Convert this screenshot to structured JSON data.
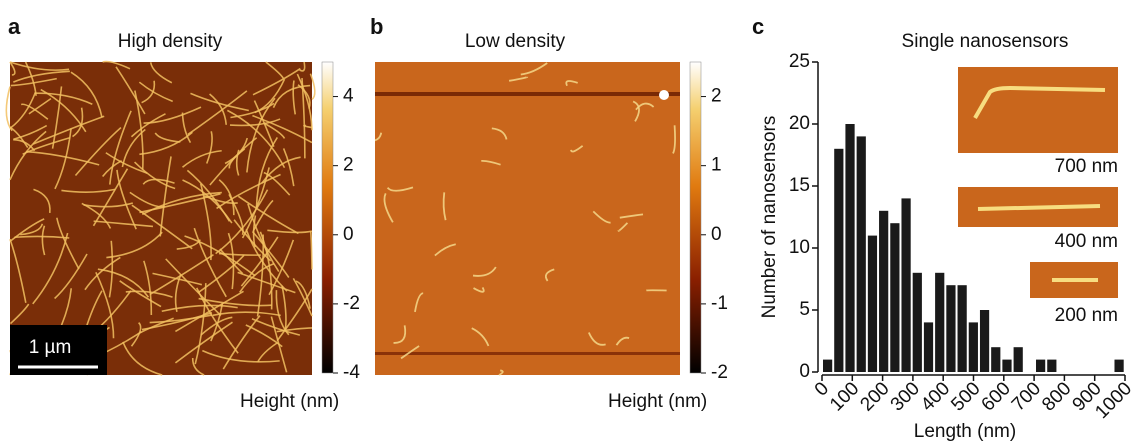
{
  "panel_a": {
    "label": "a",
    "title": "High density",
    "colorbar_lim": [
      -4,
      5
    ],
    "colorbar_ticks": [
      4,
      2,
      0,
      -2,
      -4
    ],
    "colorbar_label": "Height (nm)",
    "scale_bar": "1 µm"
  },
  "panel_b": {
    "label": "b",
    "title": "Low density",
    "colorbar_lim": [
      -2,
      2.5
    ],
    "colorbar_ticks": [
      2,
      1,
      0,
      -1,
      -2
    ],
    "colorbar_label": "Height (nm)"
  },
  "chart_data": {
    "type": "histogram",
    "panel_label": "c",
    "title": "Single nanosensors",
    "x_label": "Length (nm)",
    "y_label": "Number of nanosensors",
    "bins": [
      0,
      37,
      74,
      111,
      148,
      185,
      222,
      259,
      296,
      333,
      370,
      407,
      444,
      481,
      518,
      555,
      592,
      629,
      666,
      703,
      740,
      777,
      814,
      851,
      888,
      925,
      962,
      999
    ],
    "values": [
      1,
      18,
      20,
      19,
      11,
      13,
      12,
      14,
      8,
      4,
      8,
      7,
      7,
      4,
      5,
      2,
      1,
      2,
      0,
      1,
      1,
      0,
      0,
      0,
      0,
      0,
      1
    ],
    "color": "#1a1a1a",
    "xlim": [
      0,
      1000
    ],
    "xticks": [
      0,
      100,
      200,
      300,
      400,
      500,
      600,
      700,
      800,
      900,
      1000
    ],
    "ylim": [
      0,
      25
    ],
    "yticks": [
      0,
      5,
      10,
      15,
      20,
      25
    ],
    "insets": [
      "700 nm",
      "400 nm",
      "200 nm"
    ]
  }
}
